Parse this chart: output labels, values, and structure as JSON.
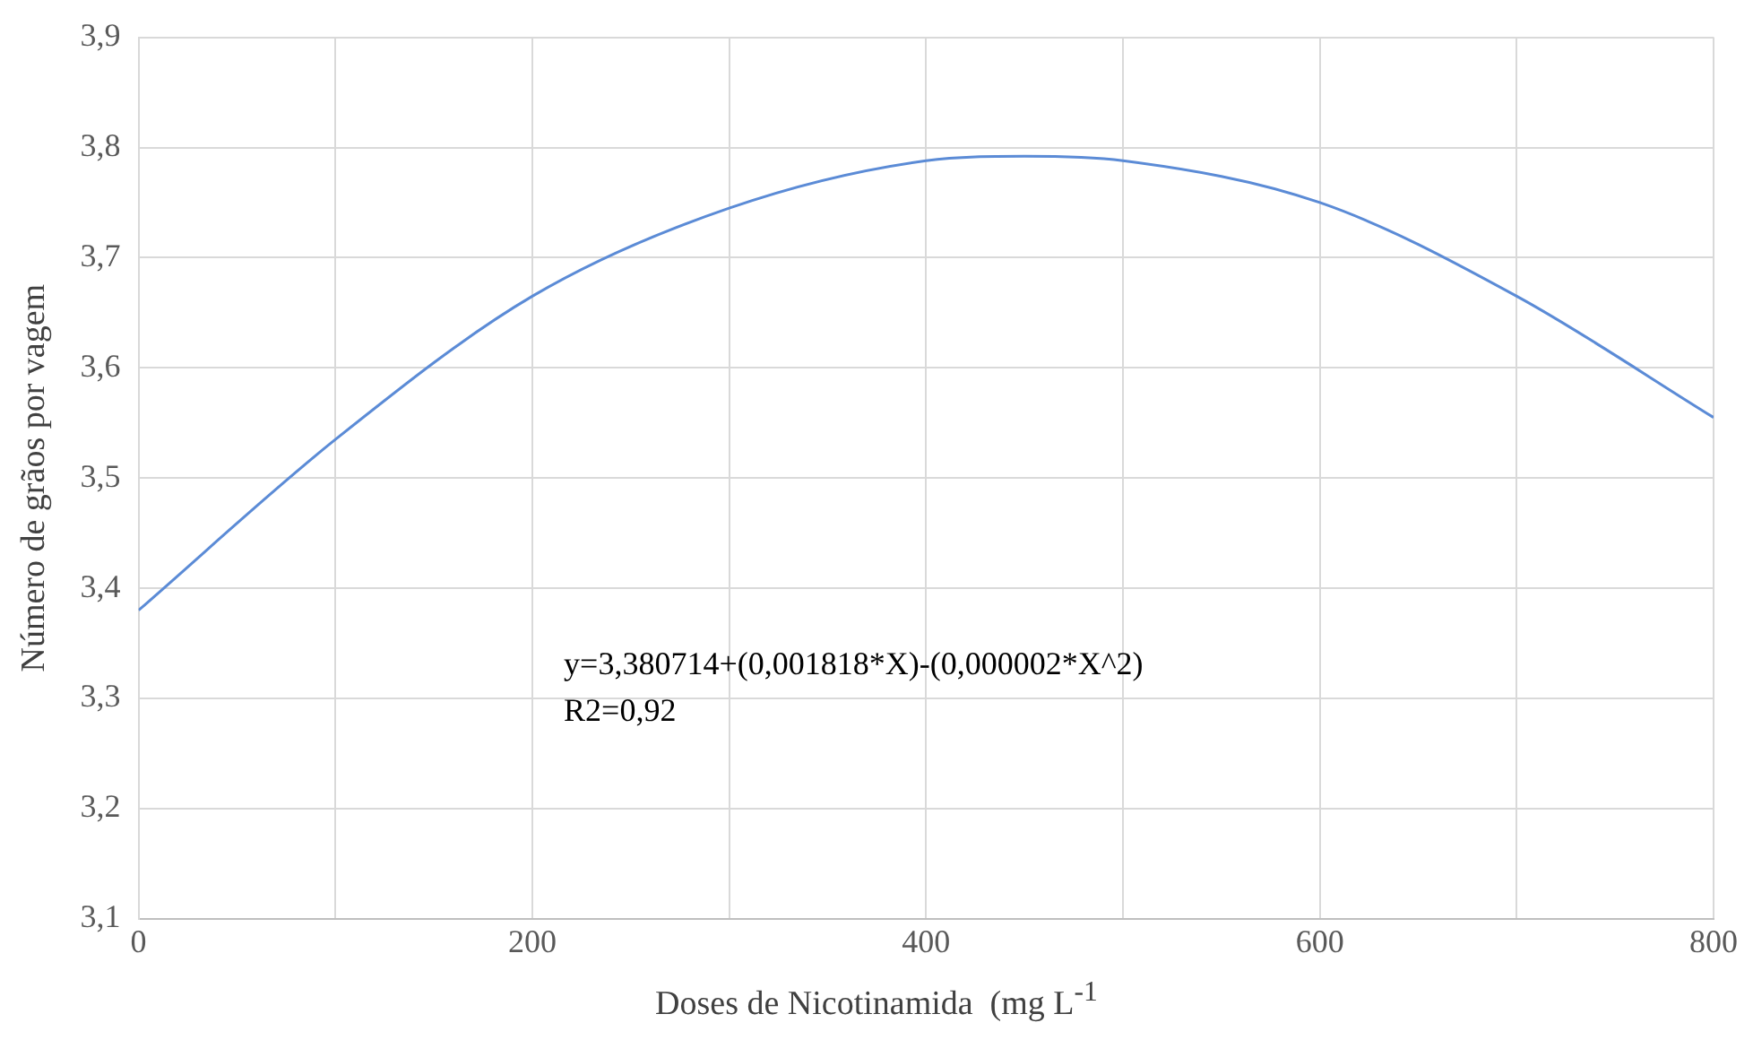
{
  "chart_data": {
    "type": "line",
    "xlabel": "Doses de Nicotinamida  (mg L$^{-1}$",
    "ylabel": "Número de grãos por vagem",
    "x": [
      0,
      100,
      200,
      300,
      400,
      450,
      500,
      600,
      700,
      800
    ],
    "series": [
      {
        "color": "#5b8bd6",
        "values": [
          3.38,
          3.535,
          3.665,
          3.745,
          3.788,
          3.792,
          3.788,
          3.75,
          3.665,
          3.555
        ]
      }
    ],
    "xlim": [
      0,
      800
    ],
    "xticks": [
      0,
      {
        "value": 100,
        "label": null
      },
      200,
      {
        "value": 300,
        "label": null
      },
      400,
      {
        "value": 500,
        "label": null
      },
      600,
      {
        "value": 700,
        "label": null
      },
      800
    ],
    "ylim": [
      3.1,
      3.9
    ],
    "yticks": [
      {
        "value": 3.1,
        "label": "3,1"
      },
      {
        "value": 3.2,
        "label": "3,2"
      },
      {
        "value": 3.3,
        "label": "3,3"
      },
      {
        "value": 3.4,
        "label": "3,4"
      },
      {
        "value": 3.5,
        "label": "3,5"
      },
      {
        "value": 3.6,
        "label": "3,6"
      },
      {
        "value": 3.7,
        "label": "3,7"
      },
      {
        "value": 3.8,
        "label": "3,8"
      },
      {
        "value": 3.9,
        "label": "3,9"
      }
    ],
    "annotations": [
      "y=3,380714+(0,001818*X)-(0,000002*X^2)",
      "R2=0,92"
    ],
    "grid": true,
    "legend": false,
    "marker": "none",
    "line_style": "solid"
  }
}
